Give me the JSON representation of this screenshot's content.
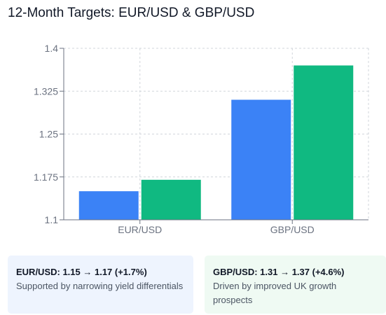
{
  "header": {
    "title": "12-Month Targets: EUR/USD & GBP/USD"
  },
  "chart_data": {
    "type": "bar",
    "title": "",
    "xlabel": "",
    "ylabel": "",
    "categories": [
      "EUR/USD",
      "GBP/USD"
    ],
    "series": [
      {
        "values": [
          1.15,
          1.31
        ],
        "color": "#3b82f6"
      },
      {
        "values": [
          1.17,
          1.37
        ],
        "color": "#10b981"
      }
    ],
    "ylim": [
      1.1,
      1.4
    ],
    "yticks": [
      "1.1",
      "1.175",
      "1.25",
      "1.325",
      "1.4"
    ],
    "grid": true
  },
  "cards": [
    {
      "headline": "EUR/USD: 1.15 → 1.17 (+1.7%)",
      "text": "Supported by narrowing yield differentials",
      "bg": "#eef4fe"
    },
    {
      "headline": "GBP/USD: 1.31 → 1.37 (+4.6%)",
      "text": "Driven by improved UK growth prospects",
      "bg": "#effaf3"
    }
  ]
}
